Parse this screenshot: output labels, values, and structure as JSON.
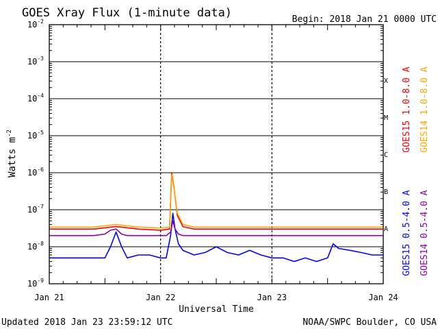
{
  "chart_data": {
    "type": "line",
    "title": "GOES Xray Flux (1-minute data)",
    "begin_label": "Begin:  2018 Jan 21 0000 UTC",
    "xlabel": "Universal Time",
    "ylabel": "Watts m",
    "ylabel_superscript": "-2",
    "y_scale": "log",
    "ylim": [
      1e-09,
      0.01
    ],
    "x_unit": "days since Jan 21 0000 UTC",
    "xlim": [
      0,
      3
    ],
    "x_ticks": [
      {
        "label": "Jan 21",
        "value": 0
      },
      {
        "label": "Jan 22",
        "value": 1
      },
      {
        "label": "Jan 23",
        "value": 2
      },
      {
        "label": "Jan 24",
        "value": 3
      }
    ],
    "y_ticks": [
      {
        "base": "10",
        "exp": "-2",
        "value": 0.01
      },
      {
        "base": "10",
        "exp": "-3",
        "value": 0.001
      },
      {
        "base": "10",
        "exp": "-4",
        "value": 0.0001
      },
      {
        "base": "10",
        "exp": "-5",
        "value": 1e-05
      },
      {
        "base": "10",
        "exp": "-6",
        "value": 1e-06
      },
      {
        "base": "10",
        "exp": "-7",
        "value": 1e-07
      },
      {
        "base": "10",
        "exp": "-8",
        "value": 1e-08
      },
      {
        "base": "10",
        "exp": "-9",
        "value": 1e-09
      }
    ],
    "flare_classes": [
      {
        "label": "X",
        "low": 0.0001,
        "high": 0.001
      },
      {
        "label": "M",
        "low": 1e-05,
        "high": 0.0001
      },
      {
        "label": "C",
        "low": 1e-06,
        "high": 1e-05
      },
      {
        "label": "B",
        "low": 1e-07,
        "high": 1e-06
      },
      {
        "label": "A",
        "low": 1e-08,
        "high": 1e-07
      }
    ],
    "series": [
      {
        "name": "GOES15 1.0-8.0 A",
        "color": "#ff0000",
        "x": [
          0,
          0.2,
          0.4,
          0.6,
          0.8,
          1.0,
          1.08,
          1.1,
          1.12,
          1.15,
          1.2,
          1.3,
          1.5,
          1.7,
          1.9,
          2.0,
          2.2,
          2.4,
          2.6,
          2.8,
          3.0
        ],
        "y": [
          3e-08,
          3e-08,
          3e-08,
          3.5e-08,
          3e-08,
          2.8e-08,
          3e-08,
          1e-06,
          4e-07,
          7e-08,
          3.5e-08,
          3e-08,
          3e-08,
          3e-08,
          3e-08,
          3e-08,
          3e-08,
          3e-08,
          3e-08,
          3e-08,
          3e-08
        ]
      },
      {
        "name": "GOES14 1.0-8.0 A",
        "color": "#ffa500",
        "x": [
          0,
          0.2,
          0.4,
          0.6,
          0.8,
          1.0,
          1.08,
          1.1,
          1.12,
          1.15,
          1.2,
          1.3,
          1.5,
          1.7,
          1.9,
          2.0,
          2.2,
          2.4,
          2.6,
          2.8,
          3.0
        ],
        "y": [
          3.4e-08,
          3.4e-08,
          3.4e-08,
          4e-08,
          3.4e-08,
          3.2e-08,
          3.4e-08,
          9e-07,
          3.8e-07,
          8e-08,
          4e-08,
          3.4e-08,
          3.4e-08,
          3.4e-08,
          3.4e-08,
          3.4e-08,
          3.4e-08,
          3.4e-08,
          3.4e-08,
          3.4e-08,
          3.4e-08
        ]
      },
      {
        "name": "GOES15 0.5-4.0 A",
        "color": "#0000ff",
        "x": [
          0,
          0.1,
          0.2,
          0.3,
          0.4,
          0.5,
          0.55,
          0.6,
          0.65,
          0.7,
          0.8,
          0.9,
          1.0,
          1.05,
          1.09,
          1.11,
          1.13,
          1.16,
          1.2,
          1.3,
          1.4,
          1.5,
          1.6,
          1.7,
          1.8,
          1.9,
          2.0,
          2.1,
          2.2,
          2.3,
          2.4,
          2.5,
          2.55,
          2.6,
          2.7,
          2.8,
          2.9,
          3.0
        ],
        "y": [
          5e-09,
          5e-09,
          5e-09,
          5e-09,
          5e-09,
          5e-09,
          1e-08,
          2.5e-08,
          1e-08,
          5e-09,
          6e-09,
          6e-09,
          5e-09,
          5e-09,
          2e-08,
          8e-08,
          3e-08,
          1.2e-08,
          8e-09,
          6e-09,
          7e-09,
          1e-08,
          7e-09,
          6e-09,
          8e-09,
          6e-09,
          5e-09,
          5e-09,
          4e-09,
          5e-09,
          4e-09,
          5e-09,
          1.2e-08,
          9e-09,
          8e-09,
          7e-09,
          6e-09,
          6e-09
        ]
      },
      {
        "name": "GOES14 0.5-4.0 A",
        "color": "#8b00a8",
        "x": [
          0,
          0.1,
          0.2,
          0.3,
          0.4,
          0.5,
          0.55,
          0.6,
          0.65,
          0.7,
          0.8,
          0.9,
          1.0,
          1.05,
          1.09,
          1.11,
          1.13,
          1.16,
          1.2,
          1.3,
          1.5,
          1.7,
          1.9,
          2.0,
          2.2,
          2.4,
          2.6,
          2.8,
          3.0
        ],
        "y": [
          2e-08,
          2e-08,
          2e-08,
          2e-08,
          2e-08,
          2.2e-08,
          2.8e-08,
          3e-08,
          2.2e-08,
          2e-08,
          2e-08,
          2e-08,
          2e-08,
          2e-08,
          2.5e-08,
          5e-08,
          3e-08,
          2.2e-08,
          2e-08,
          2e-08,
          2e-08,
          2e-08,
          2e-08,
          2e-08,
          2e-08,
          2e-08,
          2e-08,
          2e-08,
          2e-08
        ]
      }
    ],
    "legend_placement": "right",
    "grid": true
  },
  "footer": {
    "updated": "Updated 2018 Jan 23 23:59:12 UTC",
    "source": "NOAA/SWPC Boulder, CO USA"
  }
}
